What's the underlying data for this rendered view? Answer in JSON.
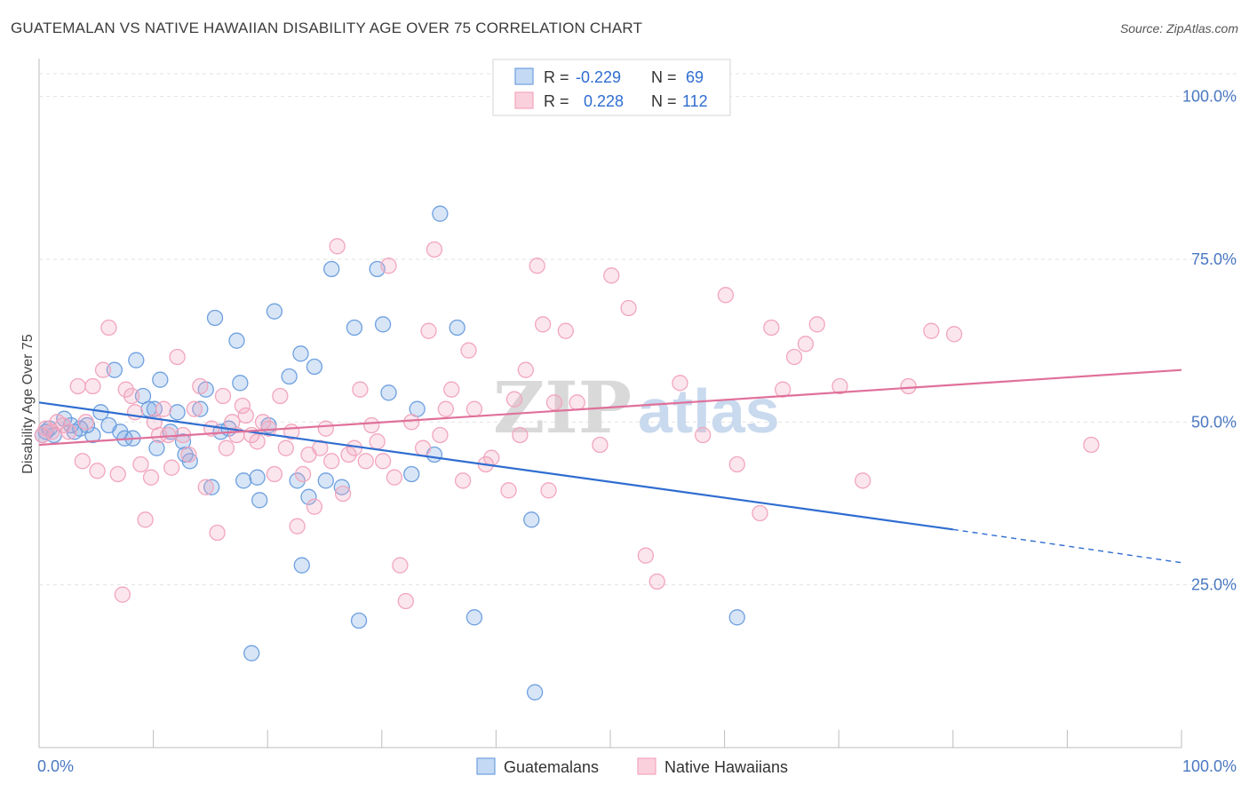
{
  "title": "GUATEMALAN VS NATIVE HAWAIIAN DISABILITY AGE OVER 75 CORRELATION CHART",
  "source": "Source: ZipAtlas.com",
  "watermark": {
    "zip": "ZIP",
    "atlas": "atlas"
  },
  "chart_data": {
    "type": "scatter",
    "xlabel": "",
    "ylabel": "Disability Age Over 75",
    "xlim": [
      0,
      100
    ],
    "ylim": [
      0,
      105
    ],
    "x_tick_labels": [
      "0.0%",
      "100.0%"
    ],
    "y_ticks": [
      25,
      50,
      75,
      100
    ],
    "y_tick_labels": [
      "25.0%",
      "50.0%",
      "75.0%",
      "100.0%"
    ],
    "grid": true,
    "legend_stats": [
      {
        "r_label": "R =",
        "r_value": "-0.229",
        "n_label": "N =",
        "n_value": "69"
      },
      {
        "r_label": "R =",
        "r_value": "0.228",
        "n_label": "N =",
        "n_value": "112"
      }
    ],
    "series": [
      {
        "name": "Guatemalans",
        "color": "#6fa0e0",
        "line_color": "#2f6dd0",
        "trend": {
          "x0": 0,
          "y0": 53.0,
          "x1": 80,
          "y1": 33.5,
          "dash_to_x": 100,
          "dash_to_y": 28.4
        },
        "points": [
          [
            0.3,
            48
          ],
          [
            0.6,
            48.5
          ],
          [
            0.9,
            49
          ],
          [
            1.3,
            48
          ],
          [
            2.2,
            50.5
          ],
          [
            2.8,
            49.5
          ],
          [
            3.1,
            48.5
          ],
          [
            3.6,
            49
          ],
          [
            4.2,
            49.5
          ],
          [
            4.7,
            48
          ],
          [
            5.4,
            51.5
          ],
          [
            6.1,
            49.5
          ],
          [
            6.6,
            58
          ],
          [
            7.1,
            48.5
          ],
          [
            7.5,
            47.5
          ],
          [
            8.2,
            47.5
          ],
          [
            8.5,
            59.5
          ],
          [
            9.1,
            54
          ],
          [
            9.6,
            52
          ],
          [
            10.1,
            52
          ],
          [
            10.3,
            46
          ],
          [
            10.6,
            56.5
          ],
          [
            11.5,
            48.5
          ],
          [
            12.1,
            51.5
          ],
          [
            12.6,
            47
          ],
          [
            12.8,
            45
          ],
          [
            13.2,
            44
          ],
          [
            14.1,
            52
          ],
          [
            14.6,
            55
          ],
          [
            15.1,
            40
          ],
          [
            15.4,
            66
          ],
          [
            15.9,
            48.5
          ],
          [
            16.6,
            49
          ],
          [
            17.3,
            62.5
          ],
          [
            17.6,
            56
          ],
          [
            17.9,
            41
          ],
          [
            18.6,
            14.5
          ],
          [
            19.1,
            41.5
          ],
          [
            19.3,
            38
          ],
          [
            20.1,
            49.5
          ],
          [
            20.6,
            67
          ],
          [
            21.9,
            57
          ],
          [
            22.6,
            41
          ],
          [
            22.9,
            60.5
          ],
          [
            23.0,
            28
          ],
          [
            23.6,
            38.5
          ],
          [
            24.1,
            58.5
          ],
          [
            25.1,
            41
          ],
          [
            25.6,
            73.5
          ],
          [
            26.5,
            40
          ],
          [
            27.6,
            64.5
          ],
          [
            28.0,
            19.5
          ],
          [
            29.6,
            73.5
          ],
          [
            30.1,
            65
          ],
          [
            30.6,
            54.5
          ],
          [
            32.6,
            42
          ],
          [
            33.1,
            52
          ],
          [
            34.6,
            45
          ],
          [
            35.1,
            82
          ],
          [
            36.6,
            64.5
          ],
          [
            38.1,
            20
          ],
          [
            43.1,
            35
          ],
          [
            43.4,
            8.5
          ],
          [
            61.1,
            20
          ]
        ]
      },
      {
        "name": "Native Hawaiians",
        "color": "#f2a6bd",
        "line_color": "#e0709a",
        "trend": {
          "x0": 0,
          "y0": 46.5,
          "x1": 100,
          "y1": 58.0
        },
        "points": [
          [
            0.3,
            48
          ],
          [
            0.6,
            49
          ],
          [
            1.1,
            48.5
          ],
          [
            1.6,
            50
          ],
          [
            2.1,
            49.5
          ],
          [
            2.6,
            48.5
          ],
          [
            3.4,
            55.5
          ],
          [
            3.8,
            44
          ],
          [
            4.1,
            50
          ],
          [
            4.7,
            55.5
          ],
          [
            5.1,
            42.5
          ],
          [
            5.6,
            58
          ],
          [
            6.1,
            64.5
          ],
          [
            6.9,
            42
          ],
          [
            7.3,
            23.5
          ],
          [
            7.6,
            55
          ],
          [
            8.1,
            54
          ],
          [
            8.4,
            51.5
          ],
          [
            8.9,
            43.5
          ],
          [
            9.3,
            35
          ],
          [
            9.8,
            41.5
          ],
          [
            10.1,
            50
          ],
          [
            10.5,
            48
          ],
          [
            10.9,
            52
          ],
          [
            11.3,
            48
          ],
          [
            11.6,
            43
          ],
          [
            12.1,
            60
          ],
          [
            12.6,
            48
          ],
          [
            13.1,
            45
          ],
          [
            13.6,
            52
          ],
          [
            14.1,
            55.5
          ],
          [
            14.6,
            40
          ],
          [
            15.1,
            49
          ],
          [
            15.6,
            33
          ],
          [
            16.1,
            54
          ],
          [
            16.4,
            46
          ],
          [
            16.9,
            50
          ],
          [
            17.3,
            48
          ],
          [
            17.8,
            52.5
          ],
          [
            18.1,
            51
          ],
          [
            18.6,
            48
          ],
          [
            19.1,
            47
          ],
          [
            19.6,
            50
          ],
          [
            20.1,
            49
          ],
          [
            20.6,
            42
          ],
          [
            21.1,
            54
          ],
          [
            21.6,
            46
          ],
          [
            22.1,
            48.5
          ],
          [
            22.6,
            34
          ],
          [
            23.1,
            42
          ],
          [
            23.6,
            45
          ],
          [
            24.1,
            37
          ],
          [
            24.6,
            46
          ],
          [
            25.1,
            49
          ],
          [
            25.6,
            44
          ],
          [
            26.1,
            77
          ],
          [
            26.6,
            39
          ],
          [
            27.1,
            45
          ],
          [
            27.6,
            46
          ],
          [
            28.1,
            55
          ],
          [
            28.6,
            44
          ],
          [
            29.1,
            49.5
          ],
          [
            29.6,
            47
          ],
          [
            30.1,
            44
          ],
          [
            30.6,
            74
          ],
          [
            31.1,
            41.5
          ],
          [
            31.6,
            28
          ],
          [
            32.1,
            22.5
          ],
          [
            32.6,
            50
          ],
          [
            33.6,
            46
          ],
          [
            34.1,
            64
          ],
          [
            34.6,
            76.5
          ],
          [
            35.1,
            48
          ],
          [
            35.6,
            52
          ],
          [
            36.1,
            55
          ],
          [
            37.1,
            41
          ],
          [
            37.6,
            61
          ],
          [
            38.1,
            52
          ],
          [
            39.1,
            43.5
          ],
          [
            39.6,
            44.5
          ],
          [
            41.1,
            39.5
          ],
          [
            41.6,
            53.5
          ],
          [
            42.1,
            48
          ],
          [
            42.6,
            58
          ],
          [
            43.6,
            74
          ],
          [
            44.1,
            65
          ],
          [
            44.6,
            39.5
          ],
          [
            45.1,
            53
          ],
          [
            46.1,
            64
          ],
          [
            47.1,
            53
          ],
          [
            49.1,
            46.5
          ],
          [
            50.1,
            72.5
          ],
          [
            51.6,
            67.5
          ],
          [
            53.1,
            29.5
          ],
          [
            54.1,
            25.5
          ],
          [
            56.1,
            56
          ],
          [
            58.1,
            48
          ],
          [
            60.1,
            69.5
          ],
          [
            61.1,
            43.5
          ],
          [
            63.1,
            36
          ],
          [
            64.1,
            64.5
          ],
          [
            65.1,
            55
          ],
          [
            66.1,
            60
          ],
          [
            67.1,
            62
          ],
          [
            68.1,
            65
          ],
          [
            70.1,
            55.5
          ],
          [
            72.1,
            41
          ],
          [
            76.1,
            55.5
          ],
          [
            78.1,
            64
          ],
          [
            80.1,
            63.5
          ],
          [
            92.1,
            46.5
          ]
        ]
      }
    ]
  }
}
